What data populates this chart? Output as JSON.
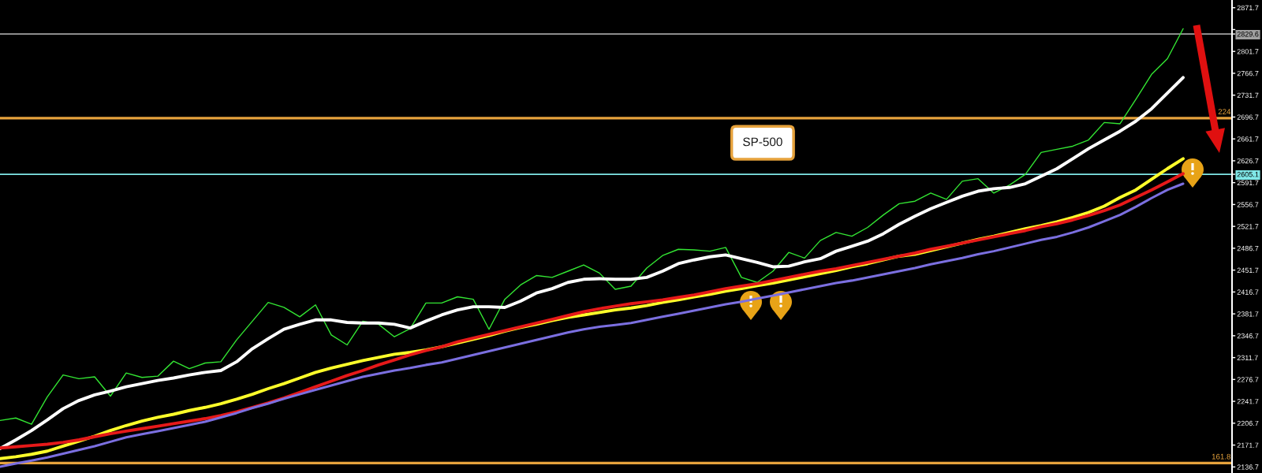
{
  "chart_data": {
    "type": "line",
    "title": "SP-500",
    "categories": [
      null,
      null,
      null,
      null,
      null,
      null,
      null,
      null,
      null,
      null,
      null,
      null,
      null,
      null,
      null,
      null,
      null,
      null,
      null,
      null,
      null,
      null,
      null,
      null,
      null,
      null,
      null,
      null,
      null,
      null,
      null,
      null,
      null,
      null,
      null,
      null,
      null,
      null,
      null,
      null,
      null,
      null,
      null,
      null,
      null,
      null,
      null,
      null,
      null,
      null,
      null,
      null,
      null,
      null,
      null,
      null,
      null,
      null,
      null,
      null,
      null,
      null,
      null,
      null,
      null,
      null,
      null,
      null,
      null,
      null,
      null,
      null,
      null,
      null,
      null,
      null,
      null,
      null,
      null
    ],
    "series": [
      {
        "color": "#33e633",
        "values": [
          2211,
          2215,
          2205,
          2249,
          2284,
          2278,
          2281,
          2250,
          2287,
          2280,
          2282,
          2306,
          2294,
          2303,
          2305,
          2340,
          2370,
          2400,
          2392,
          2377,
          2396,
          2348,
          2332,
          2370,
          2365,
          2345,
          2358,
          2399,
          2399,
          2409,
          2405,
          2357,
          2405,
          2428,
          2443,
          2440,
          2450,
          2460,
          2447,
          2421,
          2426,
          2455,
          2475,
          2485,
          2484,
          2482,
          2488,
          2440,
          2432,
          2450,
          2480,
          2471,
          2499,
          2512,
          2506,
          2520,
          2540,
          2558,
          2562,
          2575,
          2565,
          2594,
          2598,
          2575,
          2588,
          2605,
          2640,
          2645,
          2650,
          2660,
          2688,
          2686,
          2725,
          2765,
          2790,
          2838,
          null,
          null,
          null
        ]
      },
      {
        "color": "#ffffff",
        "values": [
          2166,
          2180,
          2195,
          2212,
          2230,
          2243,
          2252,
          2258,
          2265,
          2270,
          2275,
          2279,
          2284,
          2288,
          2291,
          2305,
          2326,
          2342,
          2357,
          2365,
          2372,
          2372,
          2368,
          2367,
          2367,
          2365,
          2359,
          2370,
          2380,
          2388,
          2393,
          2393,
          2392,
          2402,
          2415,
          2422,
          2432,
          2437,
          2438,
          2437,
          2437,
          2440,
          2450,
          2462,
          2468,
          2473,
          2476,
          2470,
          2464,
          2457,
          2458,
          2465,
          2470,
          2482,
          2490,
          2498,
          2510,
          2525,
          2538,
          2550,
          2560,
          2570,
          2578,
          2582,
          2584,
          2590,
          2602,
          2614,
          2630,
          2646,
          2660,
          2674,
          2690,
          2710,
          2735,
          2760,
          null,
          null,
          null
        ]
      },
      {
        "color": "#ffff2a",
        "values": [
          2150,
          2153,
          2157,
          2162,
          2170,
          2178,
          2186,
          2195,
          2203,
          2210,
          2216,
          2221,
          2227,
          2232,
          2238,
          2245,
          2253,
          2262,
          2270,
          2279,
          2288,
          2295,
          2301,
          2307,
          2312,
          2317,
          2320,
          2324,
          2329,
          2335,
          2341,
          2347,
          2354,
          2360,
          2365,
          2371,
          2376,
          2380,
          2384,
          2388,
          2391,
          2395,
          2400,
          2404,
          2409,
          2413,
          2418,
          2422,
          2427,
          2431,
          2436,
          2441,
          2446,
          2451,
          2457,
          2462,
          2468,
          2474,
          2477,
          2483,
          2489,
          2495,
          2501,
          2506,
          2512,
          2518,
          2523,
          2529,
          2536,
          2544,
          2554,
          2568,
          2580,
          2597,
          2614,
          2630,
          null,
          null,
          null
        ]
      },
      {
        "color": "#e61919",
        "values": [
          2167,
          2169,
          2171,
          2173,
          2176,
          2180,
          2185,
          2190,
          2194,
          2198,
          2202,
          2206,
          2210,
          2214,
          2219,
          2225,
          2232,
          2239,
          2247,
          2256,
          2265,
          2274,
          2283,
          2291,
          2300,
          2308,
          2316,
          2323,
          2329,
          2337,
          2343,
          2349,
          2355,
          2361,
          2367,
          2373,
          2379,
          2385,
          2390,
          2394,
          2398,
          2401,
          2404,
          2408,
          2412,
          2417,
          2422,
          2426,
          2430,
          2435,
          2440,
          2445,
          2450,
          2454,
          2459,
          2464,
          2469,
          2474,
          2479,
          2485,
          2490,
          2495,
          2500,
          2505,
          2510,
          2515,
          2521,
          2526,
          2532,
          2539,
          2547,
          2556,
          2568,
          2580,
          2593,
          2606,
          null,
          null,
          null
        ]
      },
      {
        "color": "#7b6fe0",
        "values": [
          2137,
          2142,
          2147,
          2152,
          2158,
          2164,
          2170,
          2177,
          2184,
          2189,
          2194,
          2199,
          2204,
          2209,
          2216,
          2223,
          2231,
          2238,
          2246,
          2253,
          2260,
          2267,
          2274,
          2281,
          2286,
          2291,
          2295,
          2300,
          2304,
          2310,
          2316,
          2322,
          2328,
          2334,
          2340,
          2346,
          2352,
          2357,
          2361,
          2364,
          2367,
          2372,
          2377,
          2382,
          2387,
          2392,
          2397,
          2401,
          2406,
          2411,
          2416,
          2421,
          2426,
          2431,
          2435,
          2440,
          2445,
          2450,
          2455,
          2461,
          2466,
          2471,
          2477,
          2482,
          2488,
          2494,
          2500,
          2505,
          2512,
          2520,
          2530,
          2540,
          2553,
          2567,
          2580,
          2590,
          null,
          null,
          null
        ]
      }
    ],
    "ylim": [
      2127,
      2884
    ],
    "yticks": [
      2136.7,
      2171.7,
      2206.7,
      2241.7,
      2276.7,
      2311.7,
      2346.7,
      2381.7,
      2416.7,
      2451.7,
      2486.7,
      2521.7,
      2556.7,
      2591.7,
      2605.1,
      2626.7,
      2661.7,
      2696.7,
      2731.7,
      2766.7,
      2801.7,
      2829.6,
      {
        "value": 2836.7,
        "label": null
      },
      2871.7
    ],
    "ref_lines": [
      {
        "axis": "y",
        "value": 2829.6,
        "color": "#a0a0a0"
      },
      {
        "axis": "y",
        "value": 2605.1,
        "color": "#80e8e8"
      },
      {
        "axis": "y",
        "value": 2695,
        "color": "#e6a23c"
      },
      {
        "axis": "y",
        "value": 2143,
        "color": "#e6a23c"
      }
    ],
    "annotations": [
      {
        "text": "224",
        "y": 2695
      },
      {
        "text": "161.8",
        "y": 2143
      }
    ]
  }
}
